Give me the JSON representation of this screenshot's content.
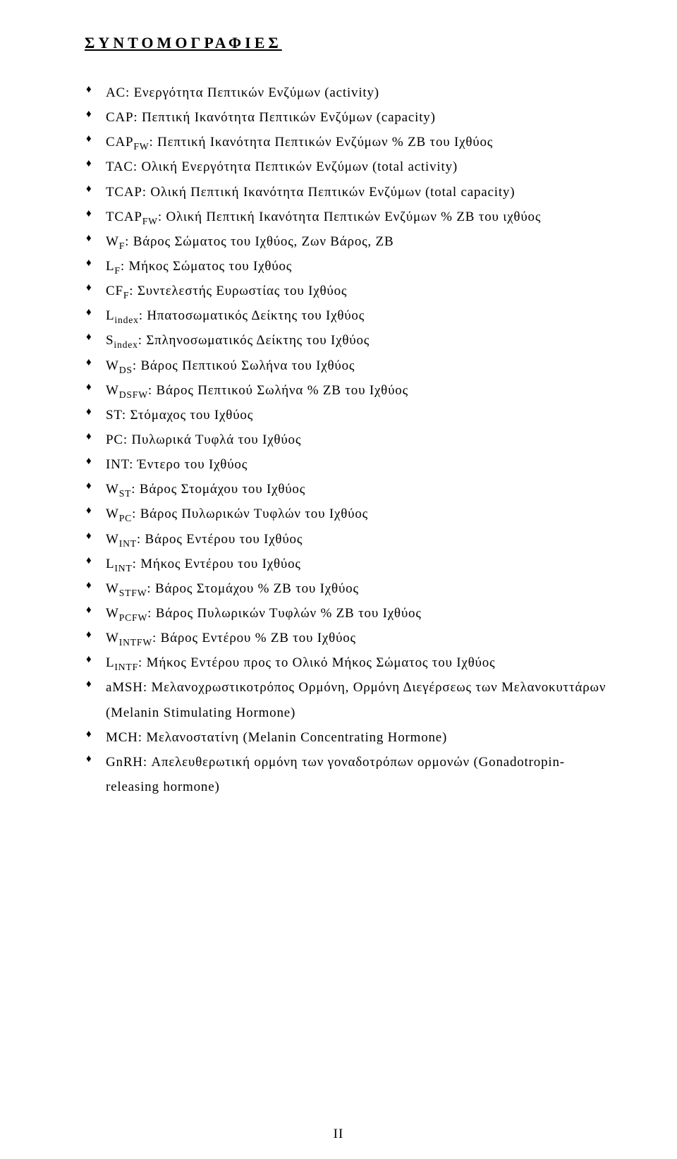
{
  "heading": "ΣΥΝΤΟΜΟΓΡΑΦΙΕΣ",
  "footer": "II",
  "items": [
    {
      "html": "AC: Ενεργότητα Πεπτικών Ενζύμων (activity)"
    },
    {
      "html": "CAP: Πεπτική Ικανότητα Πεπτικών Ενζύμων (capacity)"
    },
    {
      "html": "CAP<span class=\"sub\">FW</span>: Πεπτική Ικανότητα Πεπτικών Ενζύμων % ΖΒ του Ιχθύος"
    },
    {
      "html": "TAC: Ολική Ενεργότητα Πεπτικών Ενζύμων (total activity)"
    },
    {
      "html": "TCAP: Ολική Πεπτική Ικανότητα Πεπτικών Ενζύμων (total capacity)"
    },
    {
      "html": "TCAP<span class=\"sub\">FW</span>: Ολική Πεπτική Ικανότητα Πεπτικών Ενζύμων % ΖΒ του ιχθύος"
    },
    {
      "html": "W<span class=\"sub\">F</span>: Βάρος Σώματος του Ιχθύος, Ζων Βάρος, ΖΒ"
    },
    {
      "html": "L<span class=\"sub\">F</span>: Μήκος Σώματος του Ιχθύος"
    },
    {
      "html": "CF<span class=\"sub\">F</span>: Συντελεστής Ευρωστίας του Ιχθύος"
    },
    {
      "html": "L<span class=\"sub\">index</span>: Ηπατοσωματικός Δείκτης του Ιχθύος"
    },
    {
      "html": "S<span class=\"sub\">index</span>: Σπληνοσωματικός Δείκτης του Ιχθύος"
    },
    {
      "html": "W<span class=\"sub\">DS</span>: Βάρος Πεπτικού Σωλήνα του Ιχθύος"
    },
    {
      "html": "W<span class=\"sub\">DSFW</span>: Βάρος Πεπτικού Σωλήνα % ΖΒ του Ιχθύος"
    },
    {
      "html": "ST: Στόμαχος του Ιχθύος"
    },
    {
      "html": "PC: Πυλωρικά Τυφλά του Ιχθύος"
    },
    {
      "html": "INT: Έντερο του Ιχθύος"
    },
    {
      "html": "W<span class=\"sub\">ST</span>: Βάρος Στομάχου του Ιχθύος"
    },
    {
      "html": "W<span class=\"sub\">PC</span>: Βάρος Πυλωρικών Τυφλών του Ιχθύος"
    },
    {
      "html": "W<span class=\"sub\">INT</span>: Βάρος Εντέρου του Ιχθύος"
    },
    {
      "html": "L<span class=\"sub\">INT</span>: Μήκος Εντέρου του Ιχθύος"
    },
    {
      "html": "W<span class=\"sub\">STFW</span>: Βάρος Στομάχου % ΖΒ του Ιχθύος"
    },
    {
      "html": "W<span class=\"sub\">PCFW</span>: Βάρος Πυλωρικών Τυφλών % ΖΒ του Ιχθύος"
    },
    {
      "html": "W<span class=\"sub\">INTFW</span>: Βάρος Εντέρου % ΖΒ του Ιχθύος"
    },
    {
      "html": "L<span class=\"sub\">INTF</span>: Μήκος Εντέρου προς το Ολικό Μήκος Σώματος του Ιχθύος"
    },
    {
      "html": "aMSH: Μελανοχρωστικοτρόπος Ορμόνη, Ορμόνη Διεγέρσεως των Μελανοκυττάρων (Melanin Stimulating Hormone)"
    },
    {
      "html": "MCH: Μελανοστατίνη (Melanin Concentrating Hormone)"
    },
    {
      "html": "GnRH: Απελευθερωτική ορμόνη των γοναδοτρόπων ορμονών (Gonadotropin-releasing hormone)"
    }
  ]
}
